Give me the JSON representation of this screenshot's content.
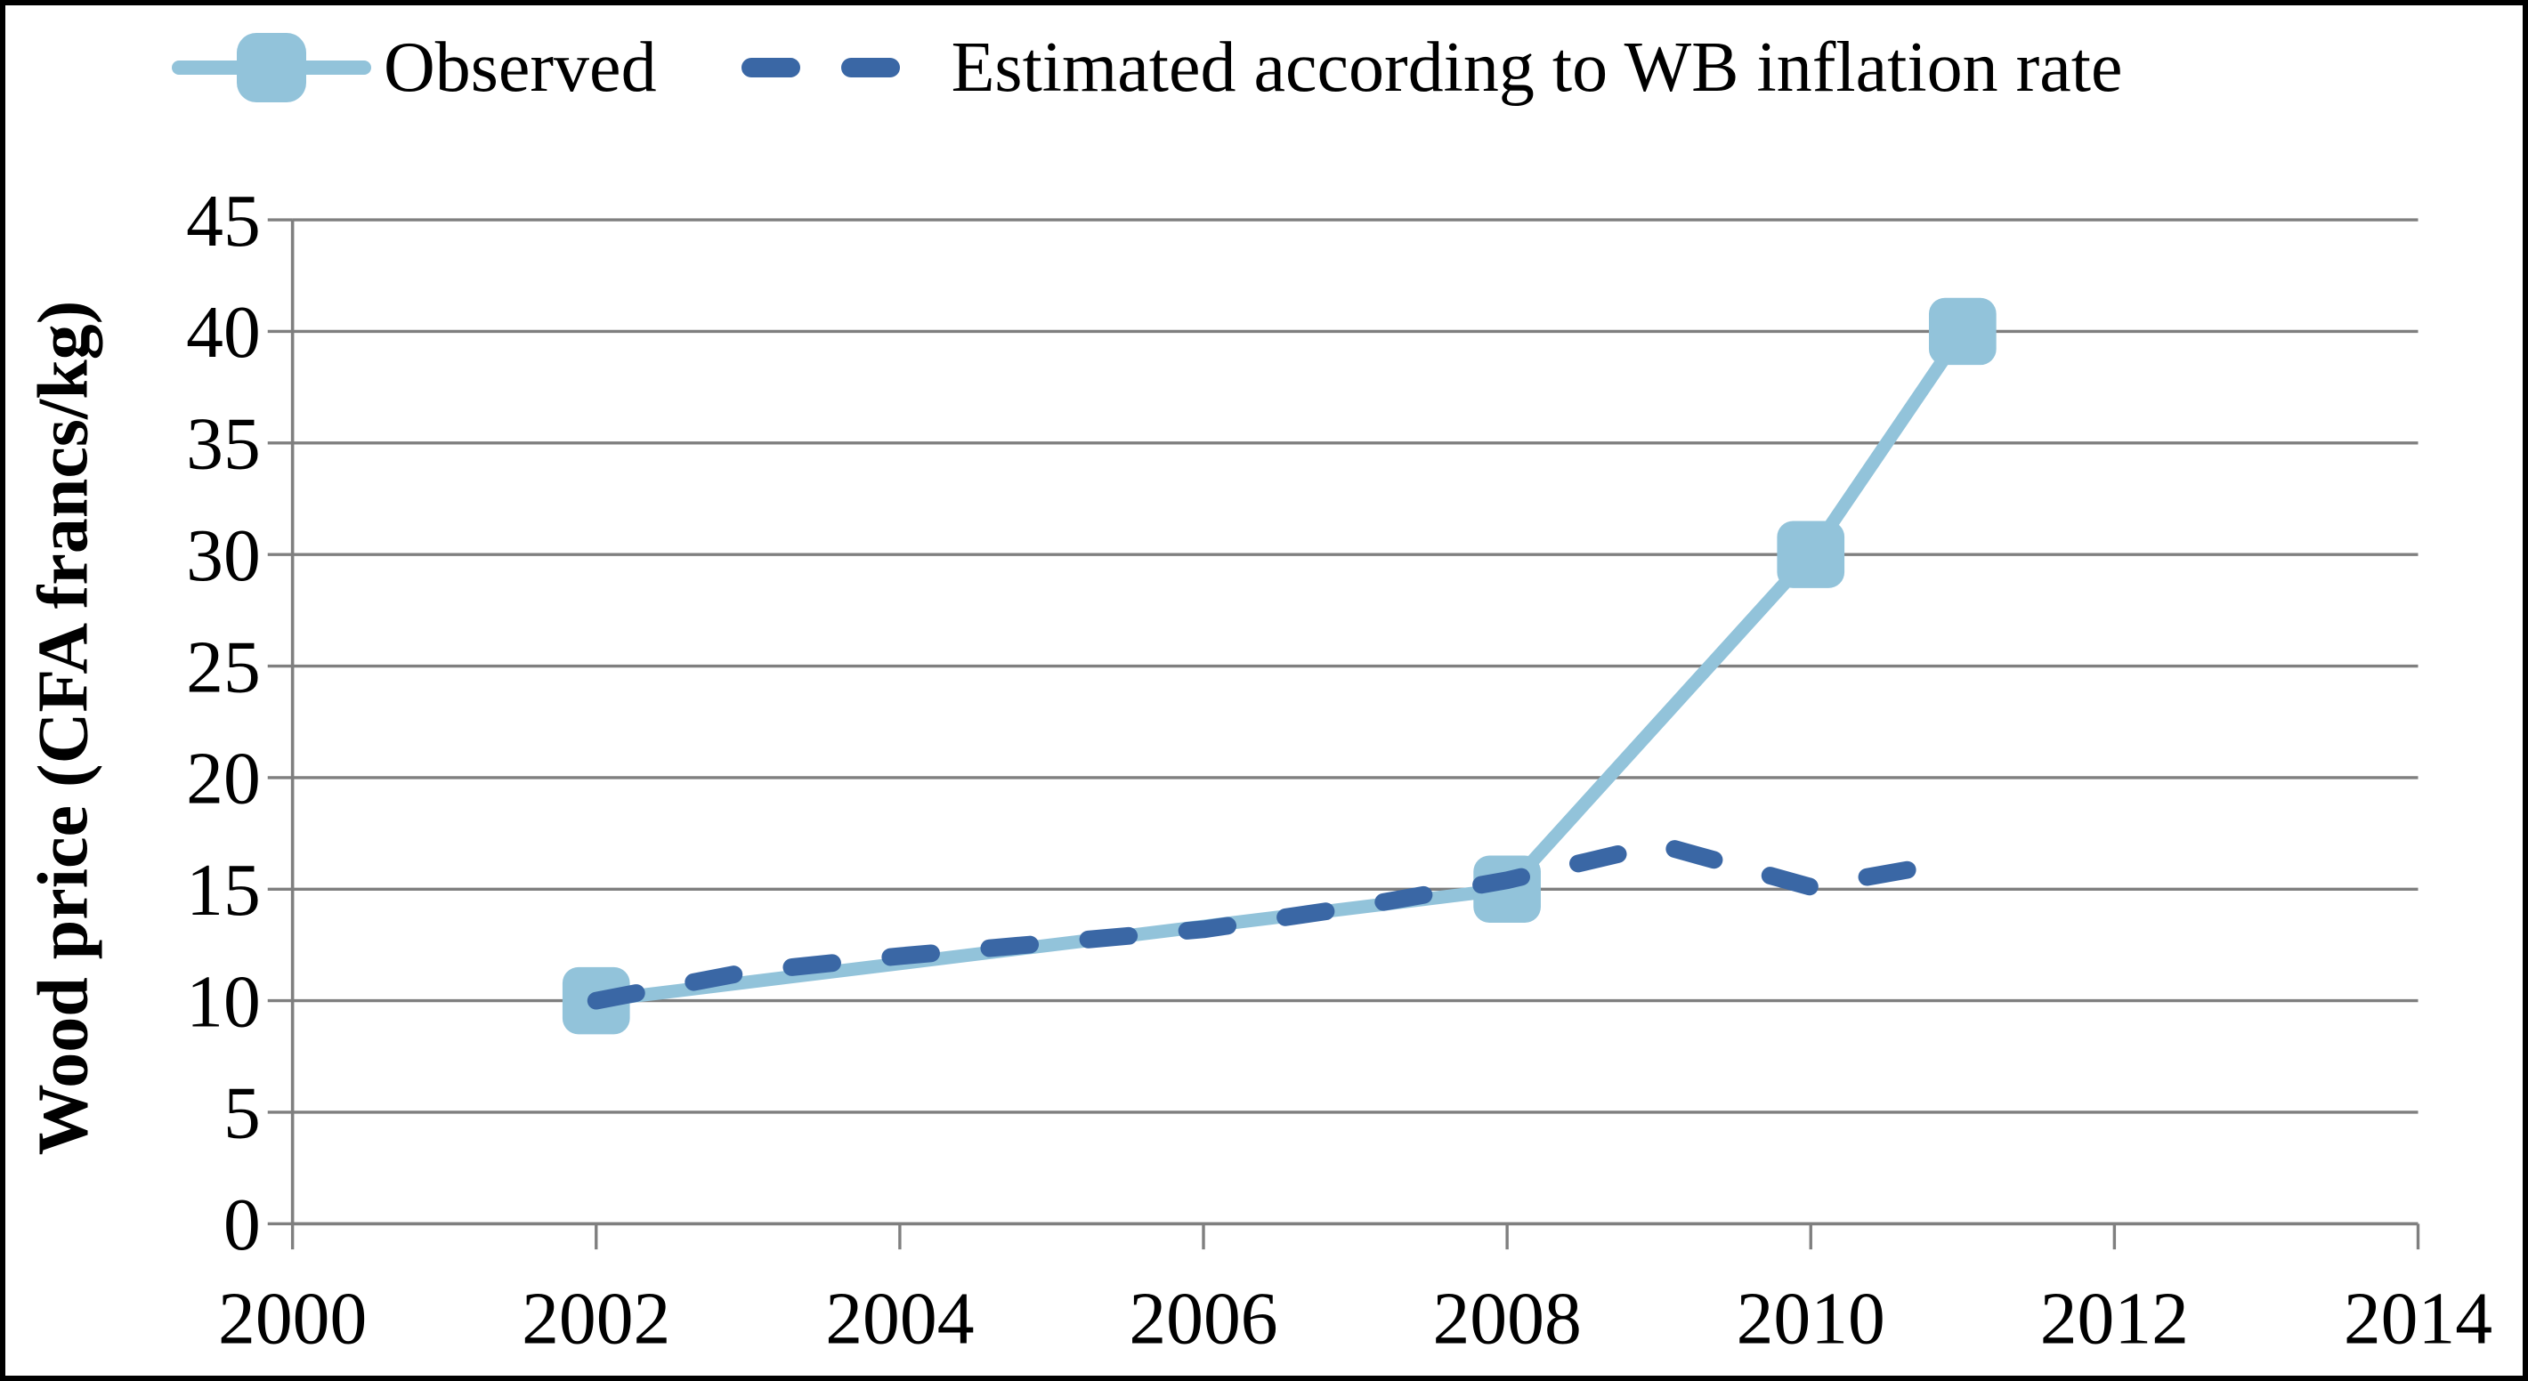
{
  "figure": {
    "background": "#FFFFFF",
    "border_color": "#000000"
  },
  "legend": {
    "position": "top",
    "items": [
      {
        "label": "Observed"
      },
      {
        "label": "Estimated according to WB inflation rate"
      }
    ]
  },
  "axes": {
    "y_title": "Wood price (CFA francs/kg)",
    "y_ticks": [
      0,
      5,
      10,
      15,
      20,
      25,
      30,
      35,
      40,
      45
    ],
    "x_ticks": [
      2000,
      2002,
      2004,
      2006,
      2008,
      2010,
      2012,
      2014
    ]
  },
  "colors": {
    "observed": "#92C3DA",
    "estimated": "#3A67A5",
    "gridline": "#7F7F7F",
    "axis": "#7F7F7F",
    "text": "#000000"
  },
  "chart_data": {
    "type": "line",
    "title": "",
    "xlabel": "",
    "ylabel": "Wood price (CFA francs/kg)",
    "xlim": [
      2000,
      2014
    ],
    "ylim": [
      0,
      45
    ],
    "grid": "horizontal",
    "legend_position": "top",
    "x_tick_labels": [
      "2000",
      "2002",
      "2004",
      "2006",
      "2008",
      "2010",
      "2012",
      "2014"
    ],
    "y_tick_labels": [
      "0",
      "5",
      "10",
      "15",
      "20",
      "25",
      "30",
      "35",
      "40",
      "45"
    ],
    "series": [
      {
        "name": "Observed",
        "color": "#92C3DA",
        "style": "solid",
        "marker": "square",
        "x": [
          2002,
          2008,
          2010,
          2011
        ],
        "values": [
          10,
          15,
          30,
          40
        ]
      },
      {
        "name": "Estimated according to WB inflation rate",
        "color": "#3A67A5",
        "style": "dashed",
        "marker": "none",
        "x": [
          2002,
          2003,
          2004,
          2005,
          2006,
          2007,
          2008,
          2009,
          2010,
          2011
        ],
        "values": [
          10,
          11.3,
          12,
          12.6,
          13.2,
          14.2,
          15.4,
          17,
          15.1,
          16.3
        ]
      }
    ]
  }
}
